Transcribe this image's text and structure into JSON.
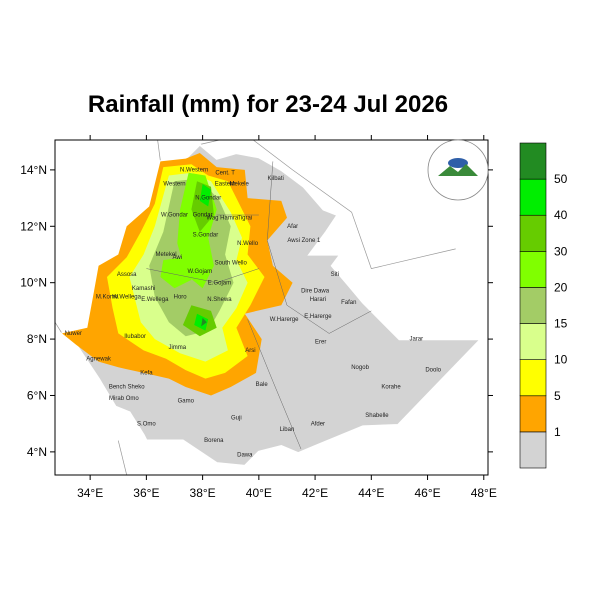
{
  "map": {
    "title": "Rainfall (mm) for 23-24 Jul 2026",
    "xlim": [
      32.75,
      48.15
    ],
    "ylim": [
      3.18,
      15.06
    ],
    "xticks": [
      {
        "value": 34,
        "label": "34°E"
      },
      {
        "value": 36,
        "label": "36°E"
      },
      {
        "value": 38,
        "label": "38°E"
      },
      {
        "value": 40,
        "label": "40°E"
      },
      {
        "value": 42,
        "label": "42°E"
      },
      {
        "value": 44,
        "label": "44°E"
      },
      {
        "value": 46,
        "label": "46°E"
      },
      {
        "value": 48,
        "label": "48°E"
      }
    ],
    "yticks": [
      {
        "value": 4,
        "label": "4°N"
      },
      {
        "value": 6,
        "label": "6°N"
      },
      {
        "value": 8,
        "label": "8°N"
      },
      {
        "value": 10,
        "label": "10°N"
      },
      {
        "value": 12,
        "label": "12°N"
      },
      {
        "value": 14,
        "label": "14°N"
      }
    ],
    "colorbar": {
      "levels": [
        1,
        5,
        10,
        15,
        20,
        30,
        40,
        50
      ],
      "colors": [
        "#d3d3d3",
        "#ffa500",
        "#ffff00",
        "#d9ff8c",
        "#a3cc66",
        "#80ff00",
        "#66cc00",
        "#00ee00",
        "#228b22"
      ]
    },
    "places": [
      "Western",
      "N.Western",
      "Cent. T",
      "Eastern",
      "Mekele",
      "Kilbati",
      "N.Gondar",
      "Gondar",
      "Wag Hamra",
      "Tigrai",
      "W.Gondar",
      "S.Gondar",
      "Afar",
      "Awsi Zone 1",
      "N.Wello",
      "Metekel",
      "Awi",
      "W.Gojam",
      "South Wello",
      "E.Gojam",
      "Assosa",
      "Kamashi",
      "Siti",
      "M.Komo",
      "W.Wellega",
      "E.Wellega",
      "Horo",
      "N.Shewa",
      "Dire Dawa",
      "Harari",
      "Fafan",
      "W.Harerge",
      "E.Harerge",
      "Jimma",
      "Ilubabor",
      "Arsi",
      "Erer",
      "Jarar",
      "Nuwer",
      "Agnewak",
      "Kefa",
      "Bench Sheko",
      "Bale",
      "Nogob",
      "Doolo",
      "Mirab Omo",
      "Gamo",
      "Korahe",
      "S.Omo",
      "Shabelle",
      "Guji",
      "Liban",
      "Afder",
      "Borena",
      "Dawa"
    ]
  }
}
